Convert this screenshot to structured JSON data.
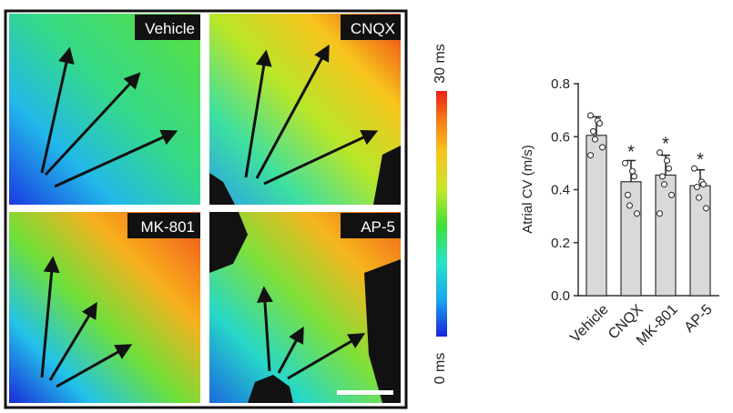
{
  "map_panels": [
    {
      "label": "Vehicle"
    },
    {
      "label": "CNQX"
    },
    {
      "label": "MK-801"
    },
    {
      "label": "AP-5"
    }
  ],
  "colorbar": {
    "max_label": "30 ms",
    "min_label": "0 ms",
    "range_ms": [
      0,
      30
    ],
    "colors": [
      "#1a22d8",
      "#1aa7f0",
      "#27e2c8",
      "#3ee03a",
      "#c8e62a",
      "#f7c51d",
      "#f77d1a",
      "#ee1f14"
    ]
  },
  "chart_data": {
    "type": "bar",
    "categories": [
      "Vehicle",
      "CNQX",
      "MK-801",
      "AP-5"
    ],
    "values": [
      0.605,
      0.43,
      0.455,
      0.415
    ],
    "errors": [
      0.07,
      0.08,
      0.075,
      0.06
    ],
    "points": [
      [
        0.68,
        0.66,
        0.65,
        0.62,
        0.59,
        0.56,
        0.53
      ],
      [
        0.5,
        0.47,
        0.45,
        0.38,
        0.34,
        0.31
      ],
      [
        0.54,
        0.51,
        0.48,
        0.45,
        0.42,
        0.38,
        0.31
      ],
      [
        0.48,
        0.43,
        0.42,
        0.41,
        0.37,
        0.33
      ]
    ],
    "significance": [
      "",
      "*",
      "*",
      "*"
    ],
    "ylabel": "Atrial CV (m/s)",
    "ylim": [
      0.0,
      0.8
    ],
    "yticks": [
      "0.0",
      "0.2",
      "0.4",
      "0.6",
      "0.8"
    ],
    "ytick_values": [
      0.0,
      0.2,
      0.4,
      0.6,
      0.8
    ],
    "bar_color": "#d9d9d9",
    "edge_color": "#333333"
  }
}
